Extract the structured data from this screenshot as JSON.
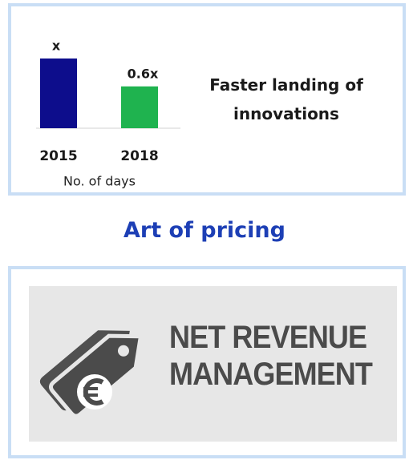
{
  "chart_data": {
    "type": "bar",
    "categories": [
      "2015",
      "2018"
    ],
    "values": [
      1,
      0.6
    ],
    "value_labels": [
      "x",
      "0.6x"
    ],
    "colors": [
      "#0d0d8c",
      "#1fb34f"
    ],
    "ylim": [
      0,
      1
    ],
    "x_label": "No. of days",
    "caption": "Faster landing of innovations"
  },
  "heading": "Art of pricing",
  "logo": {
    "line1": "NET REVENUE",
    "line2": "MANAGEMENT"
  }
}
